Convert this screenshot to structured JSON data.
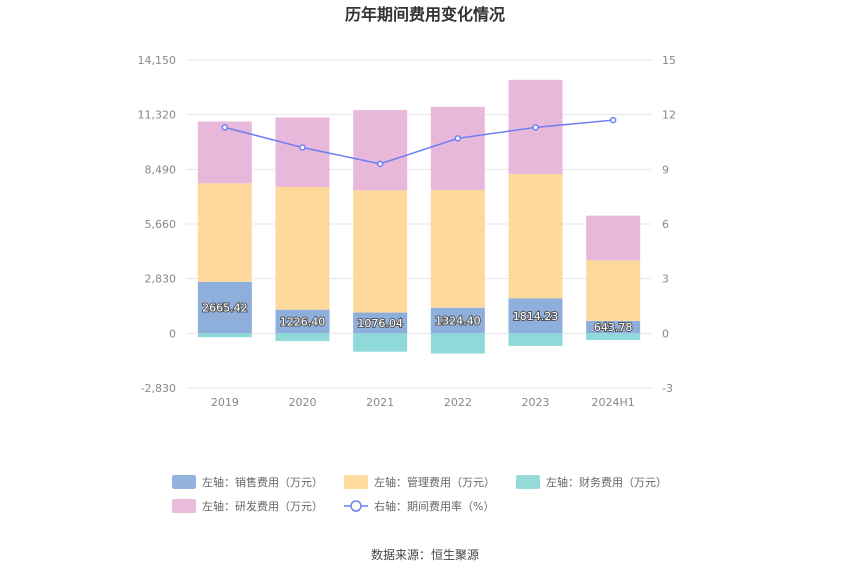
{
  "chart_data": {
    "type": "bar",
    "title": "历年期间费用变化情况",
    "categories": [
      "2019",
      "2020",
      "2021",
      "2022",
      "2023",
      "2024H1"
    ],
    "stacked": true,
    "series": [
      {
        "name": "左轴：销售费用（万元）",
        "axis": "left",
        "type": "bar",
        "color": "#8eaedc",
        "values": [
          2665.42,
          1226.4,
          1076.04,
          1324.4,
          1814.23,
          643.78
        ]
      },
      {
        "name": "左轴：管理费用（万元）",
        "axis": "left",
        "type": "bar",
        "color": "#ffd99b",
        "values": [
          5100,
          6350,
          6330,
          6100,
          6430,
          3130
        ]
      },
      {
        "name": "左轴：财务费用（万元）",
        "axis": "left",
        "type": "bar",
        "color": "#8fd9da",
        "values": [
          -200,
          -400,
          -950,
          -1050,
          -650,
          -350
        ]
      },
      {
        "name": "左轴：研发费用（万元）",
        "axis": "left",
        "type": "bar",
        "color": "#e8b8da",
        "values": [
          3200,
          3600,
          4150,
          4300,
          4880,
          2320
        ]
      },
      {
        "name": "右轴：期间费用率（%）",
        "axis": "right",
        "type": "line",
        "color": "#6f7ff2",
        "values": [
          11.3,
          10.2,
          9.3,
          10.7,
          11.3,
          11.7
        ]
      }
    ],
    "data_labels": [
      "2665.42",
      "1226.40",
      "1076.04",
      "1324.40",
      "1814.23",
      "643.78"
    ],
    "left_axis": {
      "ticks": [
        "14,150",
        "11,320",
        "8,490",
        "5,660",
        "2,830",
        "0",
        "-2,830"
      ],
      "min": -2830,
      "max": 14150
    },
    "right_axis": {
      "ticks": [
        "15",
        "12",
        "9",
        "6",
        "3",
        "0",
        "-3"
      ],
      "min": -3,
      "max": 15
    },
    "grid": true,
    "legend_position": "bottom"
  },
  "source": "数据来源：恒生聚源"
}
